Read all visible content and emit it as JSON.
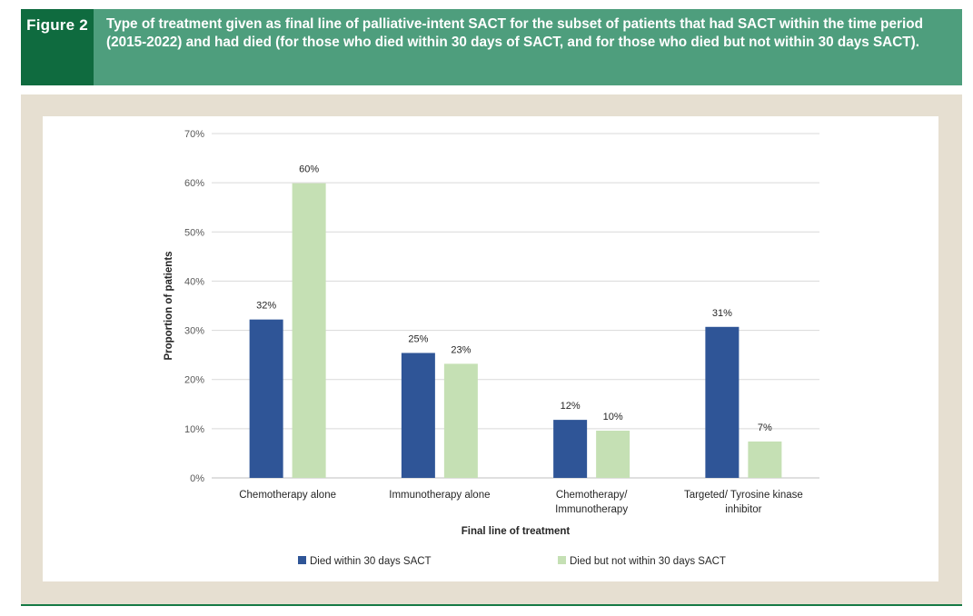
{
  "figure": {
    "label": "Figure 2",
    "title": "Type of treatment given as final line of palliative-intent SACT for the subset of patients that had SACT within the time period (2015-2022) and had died (for those who died within 30 days of SACT, and for those who died but not within 30 days SACT)."
  },
  "colors": {
    "header_bg": "#4e9e7d",
    "label_bg": "#0f6b3f",
    "panel_bg": "#e6dfd1",
    "series_1": "#2f5597",
    "series_2": "#c5e0b4"
  },
  "chart_data": {
    "type": "bar",
    "title": "",
    "xlabel": "Final line of treatment",
    "ylabel": "Proportion of patients",
    "ylim": [
      0,
      70
    ],
    "yticks": [
      "0%",
      "10%",
      "20%",
      "30%",
      "40%",
      "50%",
      "60%",
      "70%"
    ],
    "grid": true,
    "legend_position": "bottom",
    "categories": [
      [
        "Chemotherapy alone"
      ],
      [
        "Immunotherapy alone"
      ],
      [
        "Chemotherapy/",
        "Immunotherapy"
      ],
      [
        "Targeted/ Tyrosine kinase",
        "inhibitor"
      ]
    ],
    "series": [
      {
        "name": "Died within 30 days SACT",
        "color": "#2f5597",
        "values": [
          32.2,
          25.4,
          11.8,
          30.7
        ],
        "labels": [
          "32%",
          "25%",
          "12%",
          "31%"
        ]
      },
      {
        "name": "Died but not within 30 days SACT",
        "color": "#c5e0b4",
        "values": [
          59.9,
          23.2,
          9.6,
          7.4
        ],
        "labels": [
          "60%",
          "23%",
          "10%",
          "7%"
        ]
      }
    ]
  }
}
